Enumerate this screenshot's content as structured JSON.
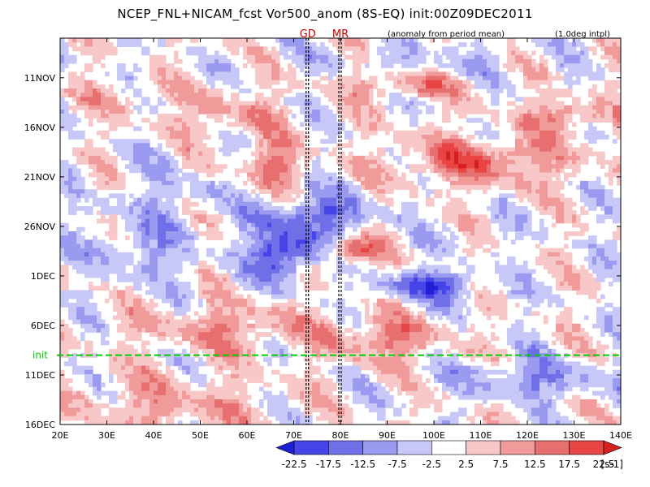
{
  "title": "NCEP_FNL+NICAM_fcst Vor500_anom (8S-EQ) init:00Z09DEC2011",
  "subtitle_left": "(anomaly from period mean)",
  "subtitle_right": "(1.0deg intpl)",
  "chart_data": {
    "type": "heatmap",
    "x_ticks": [
      "20E",
      "30E",
      "40E",
      "50E",
      "60E",
      "70E",
      "80E",
      "90E",
      "100E",
      "110E",
      "120E",
      "130E",
      "140E"
    ],
    "x_tick_values": [
      20,
      30,
      40,
      50,
      60,
      70,
      80,
      90,
      100,
      110,
      120,
      130,
      140
    ],
    "xlim": [
      20,
      140
    ],
    "y_ticks": [
      "11NOV",
      "16NOV",
      "21NOV",
      "26NOV",
      "1DEC",
      "6DEC",
      "11DEC",
      "16DEC"
    ],
    "y_tick_dates": [
      "2011-11-11",
      "2011-11-16",
      "2011-11-21",
      "2011-11-26",
      "2011-12-01",
      "2011-12-06",
      "2011-12-11",
      "2011-12-16"
    ],
    "ylim": [
      "2011-11-07",
      "2011-12-16"
    ],
    "y_direction": "time increasing downward",
    "vertical_markers": [
      {
        "label": "GD",
        "x": 73,
        "color": "#d00000"
      },
      {
        "label": "MR",
        "x": 80,
        "color": "#d00000"
      }
    ],
    "init_line": {
      "label": "init",
      "date": "2011-12-09",
      "color": "#00cc00"
    },
    "colorbar": {
      "tick_labels": [
        "-22.5",
        "-17.5",
        "-12.5",
        "-7.5",
        "-2.5",
        "2.5",
        "7.5",
        "12.5",
        "17.5",
        "22.5"
      ],
      "unit": "[s-1]",
      "colors": [
        "#1f1fd6",
        "#4444e8",
        "#6f6fe8",
        "#9a9af0",
        "#c8c8f8",
        "#ffffff",
        "#f8c8c8",
        "#f09a9a",
        "#e86f6f",
        "#e84444",
        "#d61f1f"
      ]
    },
    "grid": false
  }
}
